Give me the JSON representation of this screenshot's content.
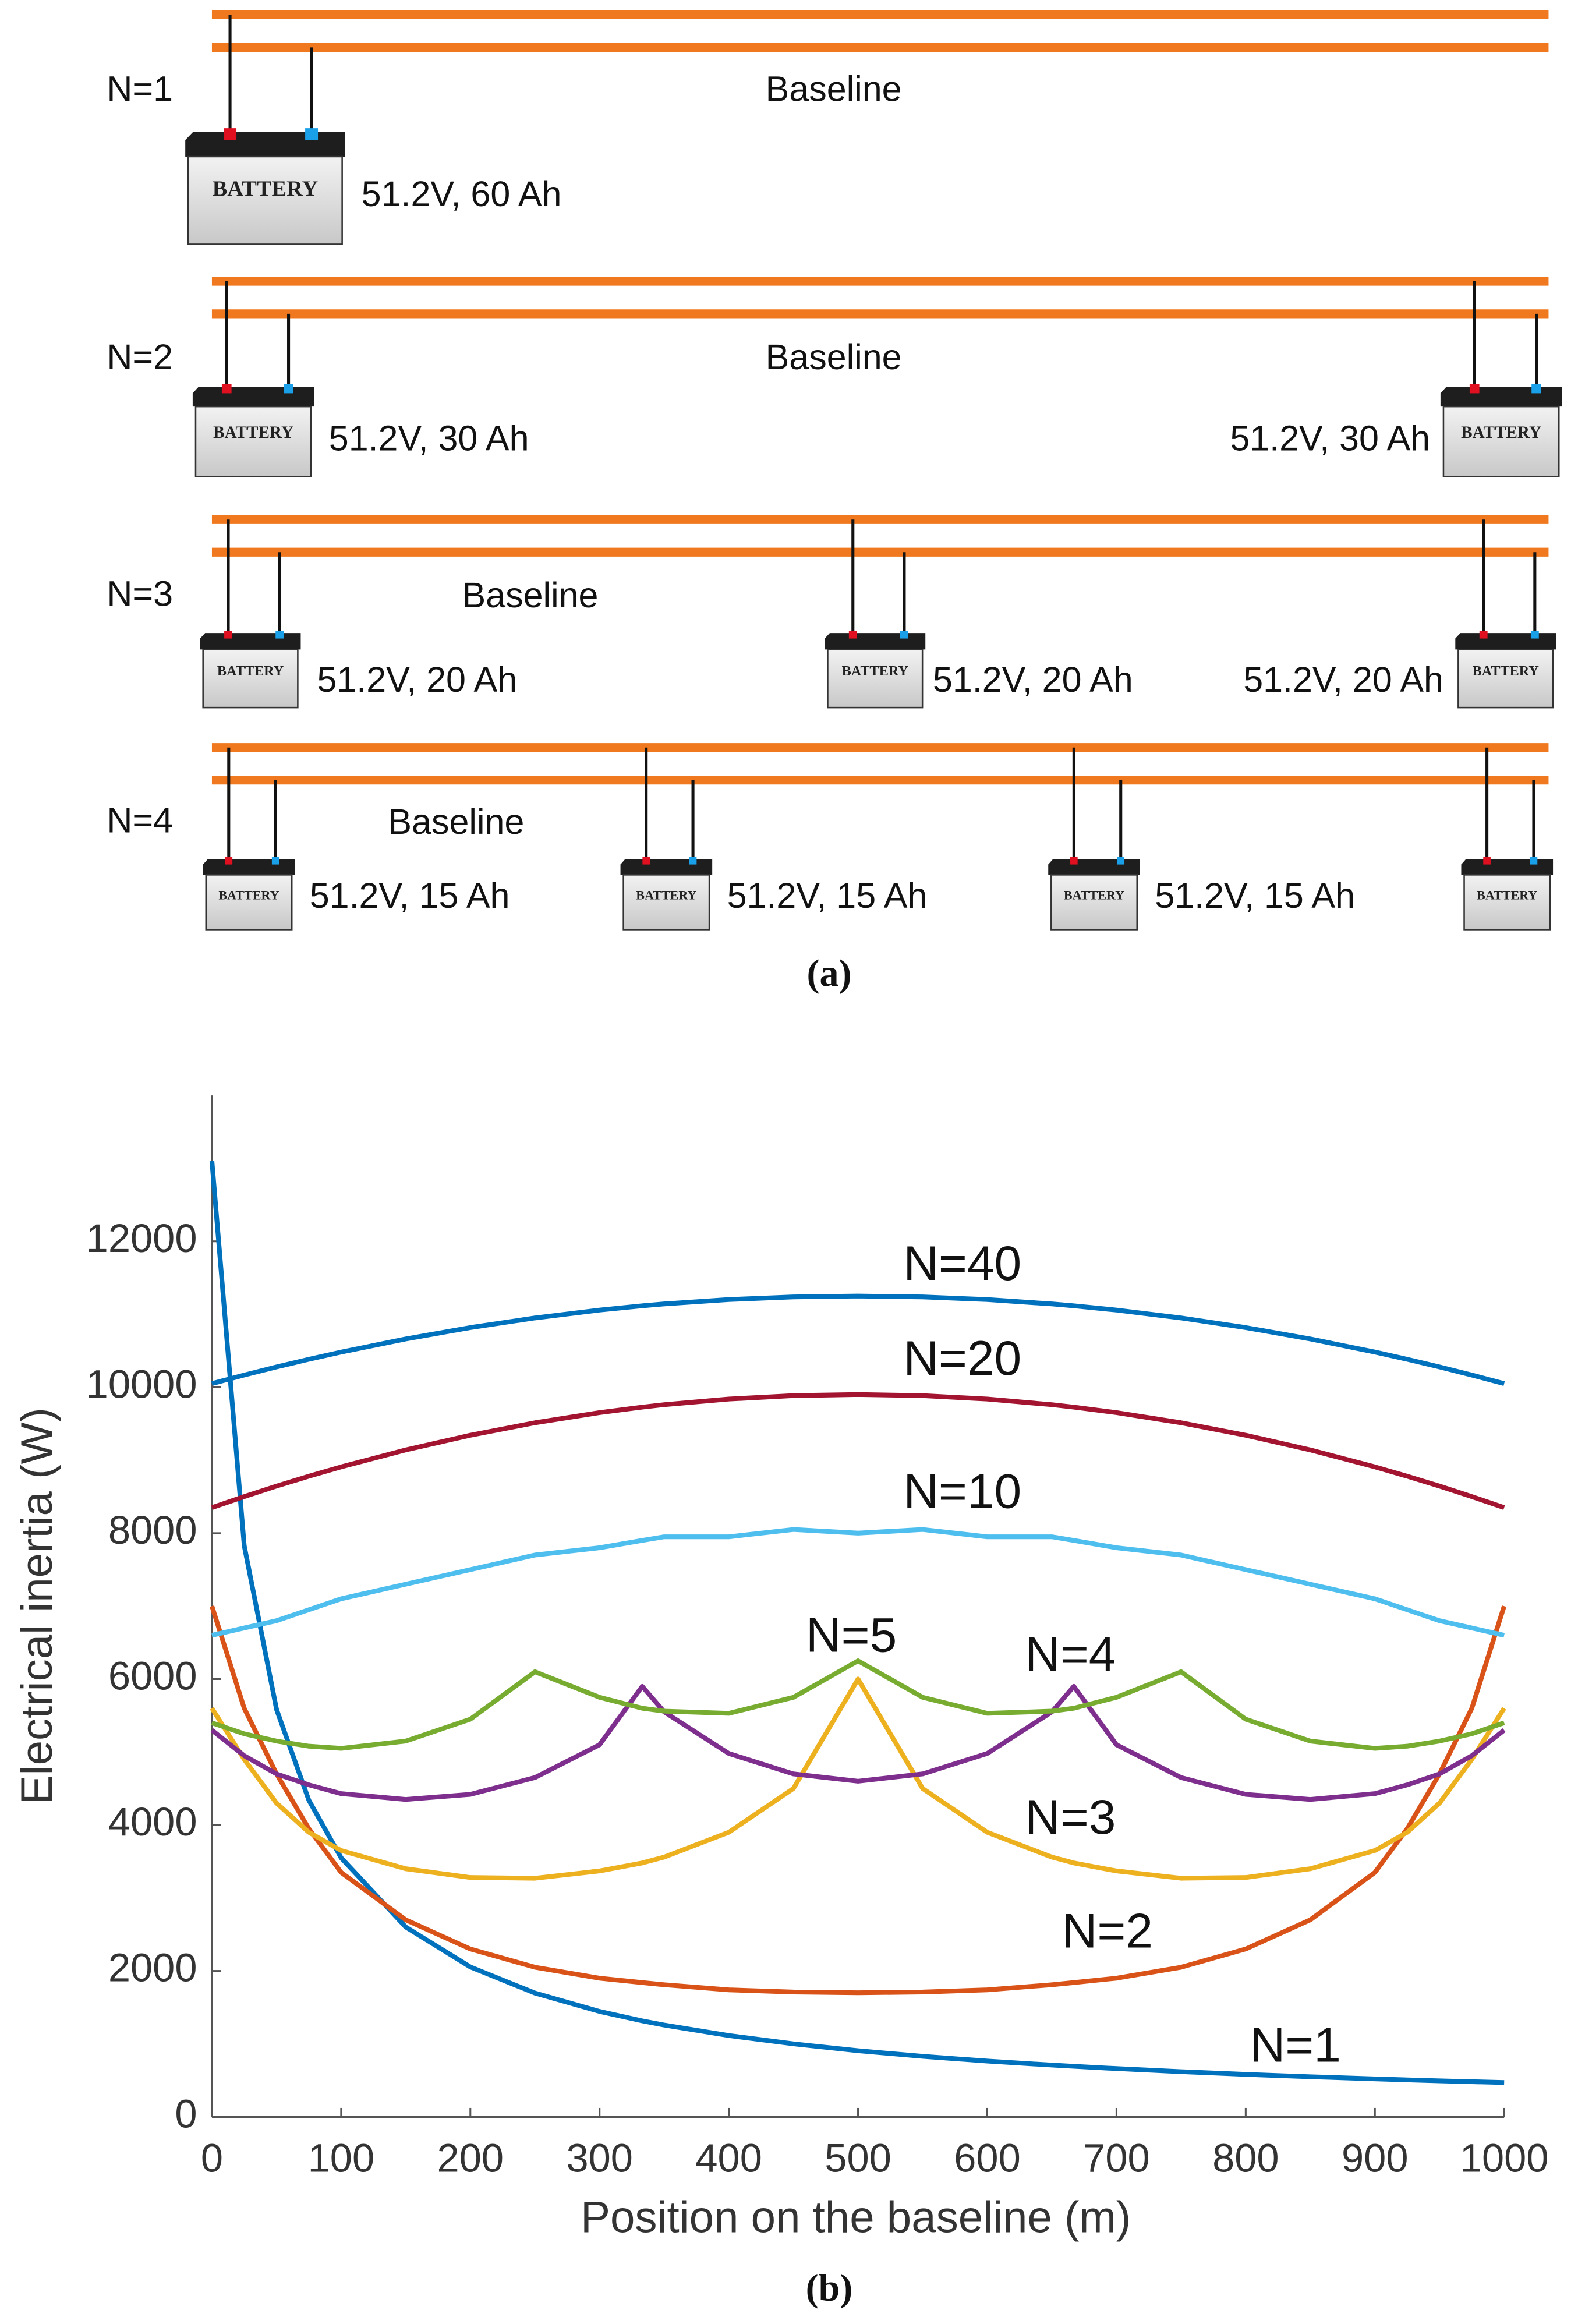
{
  "diagram": {
    "rows": [
      {
        "label": "N=1",
        "baseline": "Baseline",
        "batteries": [
          {
            "label": "51.2V, 60 Ah"
          }
        ]
      },
      {
        "label": "N=2",
        "baseline": "Baseline",
        "batteries": [
          {
            "label": "51.2V, 30 Ah"
          },
          {
            "label": "51.2V, 30 Ah"
          }
        ]
      },
      {
        "label": "N=3",
        "baseline": "Baseline",
        "batteries": [
          {
            "label": "51.2V, 20 Ah"
          },
          {
            "label": "51.2V, 20 Ah"
          },
          {
            "label": "51.2V, 20 Ah"
          }
        ]
      },
      {
        "label": "N=4",
        "baseline": "Baseline",
        "batteries": [
          {
            "label": "51.2V, 15 Ah"
          },
          {
            "label": "51.2V, 15 Ah"
          },
          {
            "label": "51.2V, 15 Ah"
          },
          {}
        ]
      }
    ],
    "battery_icon_text": "BATTERY",
    "caption": "(a)"
  },
  "chart_data": {
    "type": "line",
    "caption": "(b)",
    "x_label": "Position on the baseline (m)",
    "y_label": "Electrical inertia (W)",
    "xlim": [
      0,
      1000
    ],
    "ylim": [
      0,
      14000
    ],
    "xticks": [
      0,
      100,
      200,
      300,
      400,
      500,
      600,
      700,
      800,
      900,
      1000
    ],
    "yticks": [
      0,
      2000,
      4000,
      6000,
      8000,
      10000,
      12000
    ],
    "grid": false,
    "x": [
      0,
      25,
      50,
      75,
      100,
      150,
      200,
      250,
      300,
      333,
      350,
      400,
      450,
      500,
      550,
      600,
      650,
      667,
      700,
      750,
      800,
      850,
      900,
      925,
      950,
      975,
      1000
    ],
    "series": [
      {
        "name": "N=1",
        "color": "#0072bd",
        "values": [
          13100,
          7830,
          5585,
          4340,
          3550,
          2601,
          2054,
          1696,
          1444,
          1315,
          1258,
          1114,
          1000,
          906,
          829,
          764,
          709,
          692,
          661,
          619,
          582,
          549,
          520,
          506,
          493,
          481,
          470
        ]
      },
      {
        "name": "N=2",
        "color": "#d95319",
        "values": [
          7000,
          5600,
          4700,
          3950,
          3350,
          2700,
          2300,
          2050,
          1900,
          1840,
          1810,
          1740,
          1710,
          1700,
          1710,
          1740,
          1810,
          1840,
          1900,
          2050,
          2300,
          2700,
          3350,
          3950,
          4700,
          5600,
          7000
        ]
      },
      {
        "name": "N=3",
        "color": "#edb120",
        "values": [
          5600,
          4900,
          4300,
          3900,
          3650,
          3400,
          3280,
          3270,
          3370,
          3480,
          3560,
          3900,
          4500,
          6000,
          4500,
          3900,
          3560,
          3480,
          3370,
          3270,
          3280,
          3400,
          3650,
          3900,
          4300,
          4900,
          5600
        ]
      },
      {
        "name": "N=4",
        "color": "#7e2f8e",
        "values": [
          5300,
          4950,
          4700,
          4550,
          4430,
          4350,
          4420,
          4650,
          5100,
          5900,
          5550,
          4980,
          4700,
          4600,
          4700,
          4980,
          5550,
          5900,
          5100,
          4650,
          4420,
          4350,
          4430,
          4550,
          4700,
          4950,
          5300
        ]
      },
      {
        "name": "N=5",
        "color": "#77ac30",
        "values": [
          5400,
          5250,
          5150,
          5080,
          5050,
          5150,
          5450,
          6100,
          5750,
          5600,
          5560,
          5530,
          5750,
          6250,
          5750,
          5530,
          5560,
          5600,
          5750,
          6100,
          5450,
          5150,
          5050,
          5080,
          5150,
          5250,
          5400
        ]
      },
      {
        "name": "N=10",
        "color": "#4dbeee",
        "values": [
          6600,
          6700,
          6800,
          6950,
          7100,
          7300,
          7500,
          7700,
          7800,
          7900,
          7950,
          7950,
          8050,
          8000,
          8050,
          7950,
          7950,
          7900,
          7800,
          7700,
          7500,
          7300,
          7100,
          6950,
          6800,
          6700,
          6600
        ]
      },
      {
        "name": "N=20",
        "color": "#a2142f",
        "values": [
          8350,
          8501,
          8645,
          8780,
          8908,
          9141,
          9342,
          9513,
          9652,
          9727,
          9761,
          9838,
          9885,
          9900,
          9885,
          9838,
          9761,
          9727,
          9652,
          9513,
          9342,
          9141,
          8908,
          8780,
          8645,
          8501,
          8350
        ]
      },
      {
        "name": "N=40",
        "color": "#0072bd",
        "values": [
          10050,
          10167,
          10278,
          10383,
          10482,
          10662,
          10818,
          10950,
          11058,
          11116,
          11142,
          11202,
          11238,
          11250,
          11238,
          11202,
          11142,
          11116,
          11058,
          10950,
          10818,
          10662,
          10482,
          10383,
          10278,
          10167,
          10050
        ]
      }
    ]
  }
}
